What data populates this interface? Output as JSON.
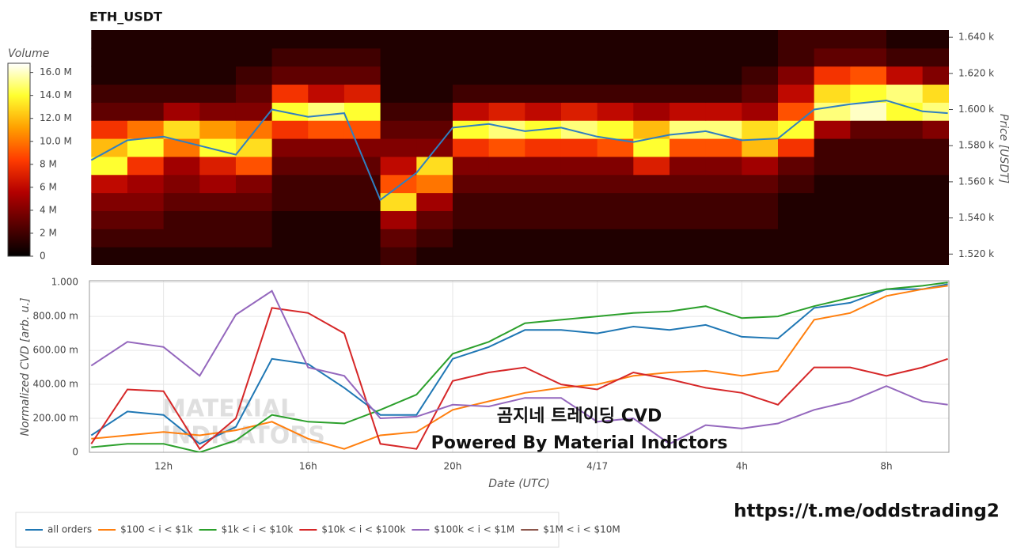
{
  "chart_data": [
    {
      "type": "heatmap",
      "title": "ETH_USDT",
      "x_bins": [
        10,
        11,
        12,
        13,
        14,
        15,
        16,
        17,
        18,
        19,
        20,
        21,
        22,
        23,
        24,
        25,
        26,
        27,
        28,
        29,
        30,
        31,
        32,
        33,
        34
      ],
      "y_bins": [
        1514,
        1524,
        1534,
        1544,
        1554,
        1564,
        1574,
        1584,
        1594,
        1604,
        1614,
        1624,
        1634,
        1644
      ],
      "z": [
        [
          1,
          1,
          1,
          1,
          1,
          1,
          1,
          1,
          2,
          1,
          1,
          1,
          1,
          1,
          1,
          1,
          1,
          1,
          1,
          1,
          1,
          1,
          1,
          1
        ],
        [
          2,
          2,
          2,
          2,
          2,
          1,
          1,
          1,
          3,
          2,
          1,
          1,
          1,
          1,
          1,
          1,
          1,
          1,
          1,
          1,
          1,
          1,
          1,
          1
        ],
        [
          3,
          3,
          2,
          2,
          2,
          1,
          1,
          1,
          5,
          3,
          2,
          2,
          2,
          2,
          2,
          2,
          2,
          2,
          2,
          1,
          1,
          1,
          1,
          1
        ],
        [
          4,
          4,
          3,
          3,
          3,
          2,
          2,
          2,
          13,
          5,
          2,
          2,
          2,
          2,
          2,
          2,
          2,
          2,
          2,
          1,
          1,
          1,
          1,
          1
        ],
        [
          6,
          5,
          4,
          5,
          4,
          2,
          2,
          2,
          9,
          10,
          3,
          3,
          3,
          3,
          3,
          3,
          3,
          3,
          3,
          2,
          1,
          1,
          1,
          1
        ],
        [
          14,
          8,
          5,
          7,
          9,
          3,
          3,
          3,
          6,
          13,
          4,
          4,
          4,
          4,
          4,
          7,
          4,
          4,
          5,
          3,
          2,
          2,
          2,
          2
        ],
        [
          12,
          14,
          10,
          14,
          13,
          4,
          4,
          4,
          4,
          4,
          8,
          9,
          8,
          8,
          9,
          14,
          9,
          9,
          12,
          8,
          2,
          2,
          2,
          2
        ],
        [
          8,
          10,
          13,
          11,
          10,
          8,
          9,
          9,
          3,
          3,
          14,
          15,
          14,
          15,
          14,
          12,
          15,
          15,
          13,
          14,
          5,
          3,
          3,
          4
        ],
        [
          3,
          3,
          5,
          4,
          4,
          14,
          15,
          14,
          2,
          2,
          6,
          7,
          6,
          7,
          6,
          5,
          6,
          6,
          5,
          9,
          15,
          16,
          14,
          15
        ],
        [
          2,
          2,
          2,
          2,
          3,
          8,
          6,
          7,
          1,
          1,
          2,
          2,
          2,
          2,
          2,
          2,
          2,
          2,
          3,
          6,
          13,
          14,
          15,
          13
        ],
        [
          1,
          1,
          1,
          1,
          2,
          3,
          3,
          3,
          1,
          1,
          1,
          1,
          1,
          1,
          1,
          1,
          1,
          1,
          2,
          4,
          8,
          9,
          6,
          4
        ],
        [
          1,
          1,
          1,
          1,
          1,
          2,
          2,
          2,
          1,
          1,
          1,
          1,
          1,
          1,
          1,
          1,
          1,
          1,
          1,
          2,
          3,
          3,
          2,
          2
        ],
        [
          1,
          1,
          1,
          1,
          1,
          1,
          1,
          1,
          1,
          1,
          1,
          1,
          1,
          1,
          1,
          1,
          1,
          1,
          1,
          2,
          2,
          2,
          1,
          1
        ]
      ],
      "xlim": [
        9.95,
        33.73
      ],
      "ylim": [
        1514,
        1644
      ],
      "yticks": [
        {
          "value": 1520,
          "label": "1.520 k"
        },
        {
          "value": 1540,
          "label": "1.540 k"
        },
        {
          "value": 1560,
          "label": "1.560 k"
        },
        {
          "value": 1580,
          "label": "1.580 k"
        },
        {
          "value": 1600,
          "label": "1.600 k"
        },
        {
          "value": 1620,
          "label": "1.620 k"
        },
        {
          "value": 1640,
          "label": "1.640 k"
        }
      ],
      "y_label": "Price [USDT]",
      "colorbar": {
        "title": "Volume",
        "zlim": [
          0,
          16.8
        ],
        "ticks": [
          0,
          {
            "value": 2,
            "label": "2 M"
          },
          {
            "value": 4,
            "label": "4 M"
          },
          {
            "value": 6,
            "label": "6 M"
          },
          {
            "value": 8,
            "label": "8 M"
          },
          {
            "value": 10,
            "label": "10.0 M"
          },
          {
            "value": 12,
            "label": "12.0 M"
          },
          {
            "value": 14,
            "label": "14.0 M"
          },
          {
            "value": 16,
            "label": "16.0 M"
          }
        ],
        "colorscale": [
          "#000000",
          "#5a0000",
          "#b40000",
          "#ff3c00",
          "#ffa000",
          "#ffff30",
          "#ffffff"
        ]
      },
      "price_line": {
        "color": "#2f7fc1",
        "x": [
          10,
          11,
          12,
          13,
          14,
          15,
          16,
          17,
          18,
          19,
          20,
          21,
          22,
          23,
          24,
          25,
          26,
          27,
          28,
          29,
          30,
          31,
          32,
          33,
          33.7
        ],
        "values": [
          1572,
          1583,
          1585,
          1580,
          1575,
          1600,
          1596,
          1598,
          1550,
          1565,
          1590,
          1592,
          1588,
          1590,
          1585,
          1582,
          1586,
          1588,
          1583,
          1584,
          1600,
          1603,
          1605,
          1599,
          1598
        ]
      }
    },
    {
      "type": "line",
      "x": [
        10,
        11,
        12,
        13,
        14,
        15,
        16,
        17,
        18,
        19,
        20,
        21,
        22,
        23,
        24,
        25,
        26,
        27,
        28,
        29,
        30,
        31,
        32,
        33,
        33.7
      ],
      "xlim": [
        9.95,
        33.73
      ],
      "xticks": [
        {
          "value": 12,
          "label": "12h"
        },
        {
          "value": 16,
          "label": "16h"
        },
        {
          "value": 20,
          "label": "20h"
        },
        {
          "value": 24,
          "label": "4/17"
        },
        {
          "value": 28,
          "label": "4h"
        },
        {
          "value": 32,
          "label": "8h"
        }
      ],
      "x_label": "Date (UTC)",
      "ylim": [
        0,
        1.01
      ],
      "yticks": [
        0,
        {
          "value": 0.2,
          "label": "200.00 m"
        },
        {
          "value": 0.4,
          "label": "400.00 m"
        },
        {
          "value": 0.6,
          "label": "600.00 m"
        },
        {
          "value": 0.8,
          "label": "800.00 m"
        },
        {
          "value": 1,
          "label": "1.000"
        }
      ],
      "y_label": "Normalized CVD [arb. u.]",
      "grid": true,
      "legend": "bottom-left",
      "series": [
        {
          "name": "all orders",
          "color": "#1f77b4",
          "values": [
            0.1,
            0.24,
            0.22,
            0.05,
            0.15,
            0.55,
            0.52,
            0.38,
            0.22,
            0.22,
            0.55,
            0.62,
            0.72,
            0.72,
            0.7,
            0.74,
            0.72,
            0.75,
            0.68,
            0.67,
            0.85,
            0.88,
            0.96,
            0.96,
            0.99
          ]
        },
        {
          "name": "$100 < i < $1k",
          "color": "#ff7f0e",
          "values": [
            0.08,
            0.1,
            0.12,
            0.1,
            0.13,
            0.18,
            0.08,
            0.02,
            0.1,
            0.12,
            0.25,
            0.3,
            0.35,
            0.38,
            0.4,
            0.45,
            0.47,
            0.48,
            0.45,
            0.48,
            0.78,
            0.82,
            0.92,
            0.96,
            0.98
          ]
        },
        {
          "name": "$1k < i < $10k",
          "color": "#2ca02c",
          "values": [
            0.03,
            0.05,
            0.05,
            0.0,
            0.07,
            0.22,
            0.18,
            0.17,
            0.25,
            0.34,
            0.58,
            0.65,
            0.76,
            0.78,
            0.8,
            0.82,
            0.83,
            0.86,
            0.79,
            0.8,
            0.86,
            0.91,
            0.96,
            0.98,
            1.0
          ]
        },
        {
          "name": "$10k < i < $100k",
          "color": "#d62728",
          "values": [
            0.05,
            0.37,
            0.36,
            0.02,
            0.2,
            0.85,
            0.82,
            0.7,
            0.05,
            0.02,
            0.42,
            0.47,
            0.5,
            0.4,
            0.37,
            0.47,
            0.43,
            0.38,
            0.35,
            0.28,
            0.5,
            0.5,
            0.45,
            0.5,
            0.55
          ]
        },
        {
          "name": "$100k < i < $1M",
          "color": "#9467bd",
          "values": [
            0.51,
            0.65,
            0.62,
            0.45,
            0.81,
            0.95,
            0.5,
            0.45,
            0.2,
            0.21,
            0.28,
            0.27,
            0.32,
            0.32,
            0.18,
            0.2,
            0.05,
            0.16,
            0.14,
            0.17,
            0.25,
            0.3,
            0.39,
            0.3,
            0.28
          ]
        },
        {
          "name": "$1M < i < $10M",
          "color": "#8c564b",
          "values": [
            null,
            null,
            null,
            null,
            null,
            null,
            null,
            null,
            null,
            null,
            null,
            null,
            null,
            null,
            null,
            null,
            null,
            null,
            null,
            null,
            null,
            null,
            null,
            null,
            null
          ]
        }
      ],
      "watermark": [
        "MATERIAL",
        "INDICATORS"
      ],
      "annotations": [
        "곰지네 트레이딩 CVD",
        "Powered By Material Indictors"
      ]
    }
  ],
  "footer": {
    "link": "https://t.me/oddstrading2"
  }
}
